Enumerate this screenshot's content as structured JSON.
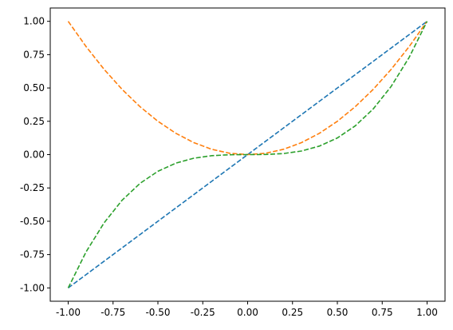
{
  "chart_data": {
    "type": "line",
    "title": "",
    "xlabel": "",
    "ylabel": "",
    "xlim": [
      -1.0,
      1.0
    ],
    "ylim": [
      -1.0,
      1.0
    ],
    "grid": false,
    "legend": "none",
    "x_ticks": [
      "-1.00",
      "-0.75",
      "-0.50",
      "-0.25",
      "0.00",
      "0.25",
      "0.50",
      "0.75",
      "1.00"
    ],
    "y_ticks": [
      "-1.00",
      "-0.75",
      "-0.50",
      "-0.25",
      "0.00",
      "0.25",
      "0.50",
      "0.75",
      "1.00"
    ],
    "x": [
      -1.0,
      -0.9,
      -0.8,
      -0.7,
      -0.6,
      -0.5,
      -0.4,
      -0.3,
      -0.2,
      -0.1,
      0.0,
      0.1,
      0.2,
      0.3,
      0.4,
      0.5,
      0.6,
      0.7,
      0.8,
      0.9,
      1.0
    ],
    "series": [
      {
        "color": "#1f77b4",
        "line_style": "dashed",
        "values": [
          -1.0,
          -0.9,
          -0.8,
          -0.7,
          -0.6,
          -0.5,
          -0.4,
          -0.3,
          -0.2,
          -0.1,
          0.0,
          0.1,
          0.2,
          0.3,
          0.4,
          0.5,
          0.6,
          0.7,
          0.8,
          0.9,
          1.0
        ]
      },
      {
        "color": "#ff7f0e",
        "line_style": "dashed",
        "values": [
          1.0,
          0.81,
          0.64,
          0.49,
          0.36,
          0.25,
          0.16,
          0.09,
          0.04,
          0.01,
          0.0,
          0.01,
          0.04,
          0.09,
          0.16,
          0.25,
          0.36,
          0.49,
          0.64,
          0.81,
          1.0
        ]
      },
      {
        "color": "#2ca02c",
        "line_style": "dashed",
        "values": [
          -1.0,
          -0.729,
          -0.512,
          -0.343,
          -0.216,
          -0.125,
          -0.064,
          -0.027,
          -0.008,
          -0.001,
          0.0,
          0.001,
          0.008,
          0.027,
          0.064,
          0.125,
          0.216,
          0.343,
          0.512,
          0.729,
          1.0
        ]
      }
    ]
  }
}
